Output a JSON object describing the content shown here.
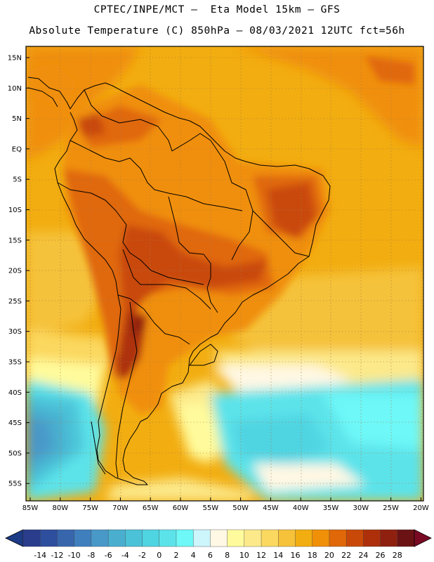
{
  "header": {
    "line1": "CPTEC/INPE/MCT –  Eta Model 15km – GFS",
    "line2": "Absolute Temperature (C) 850hPa – 08/03/2021 12UTC fct=56h"
  },
  "axes": {
    "lat_labels": [
      "15N",
      "10N",
      "5N",
      "EQ",
      "5S",
      "10S",
      "15S",
      "20S",
      "25S",
      "30S",
      "35S",
      "40S",
      "45S",
      "50S",
      "55S"
    ],
    "lon_labels": [
      "85W",
      "80W",
      "75W",
      "70W",
      "65W",
      "60W",
      "55W",
      "50W",
      "45W",
      "40W",
      "35W",
      "30W",
      "25W",
      "20W"
    ]
  },
  "colorbar": {
    "labels": [
      "-14",
      "-12",
      "-10",
      "-8",
      "-6",
      "-4",
      "-2",
      "0",
      "2",
      "4",
      "6",
      "8",
      "10",
      "12",
      "14",
      "16",
      "18",
      "20",
      "22",
      "24",
      "26",
      "28"
    ],
    "colors": [
      "#2a3d8c",
      "#2e4f9e",
      "#3766ad",
      "#3f7fbe",
      "#4898c8",
      "#4aaecf",
      "#4bc2d8",
      "#4fd4e2",
      "#5ce3ea",
      "#6ef8f8",
      "#ccf5fc",
      "#fff8e4",
      "#fffb9c",
      "#fce98a",
      "#fbd85f",
      "#f5c23a",
      "#f2ad10",
      "#f08f08",
      "#e06808",
      "#c94a08",
      "#ad300a",
      "#8f2010",
      "#6b1214"
    ],
    "arrow_left": "#1c3a86",
    "arrow_right": "#7a0a24"
  }
}
